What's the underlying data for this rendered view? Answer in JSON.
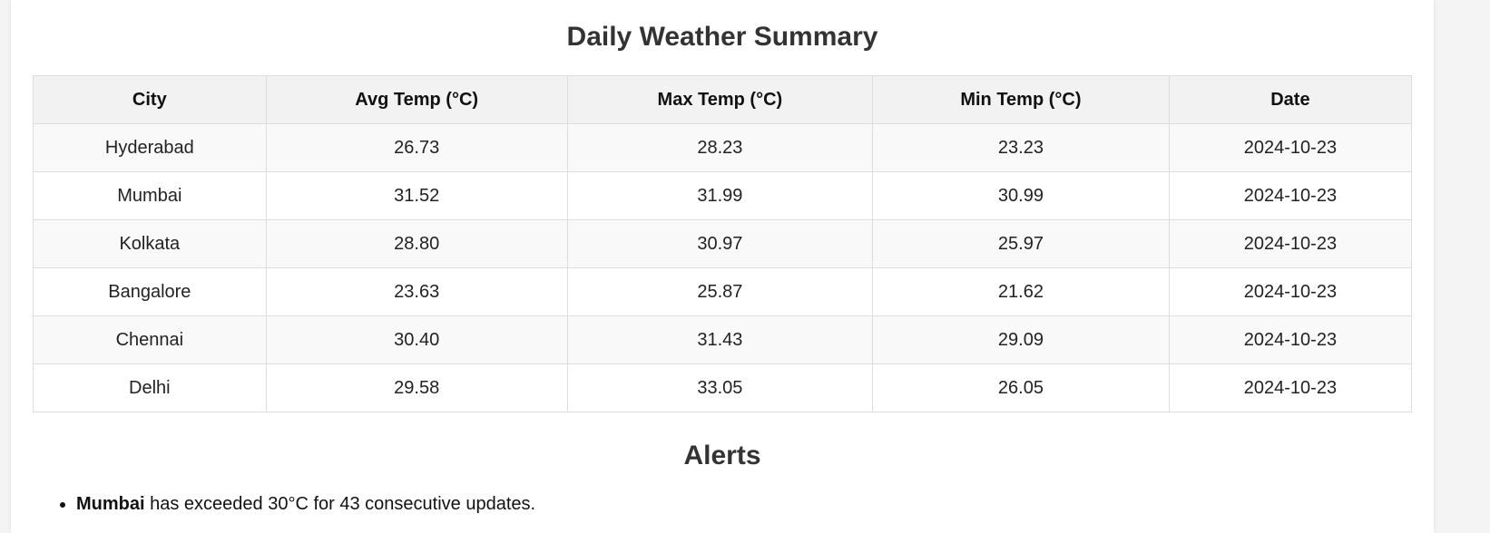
{
  "page_title": "Daily Weather Summary",
  "table": {
    "headers": [
      "City",
      "Avg Temp (°C)",
      "Max Temp (°C)",
      "Min Temp (°C)",
      "Date"
    ],
    "rows": [
      [
        "Hyderabad",
        "26.73",
        "28.23",
        "23.23",
        "2024-10-23"
      ],
      [
        "Mumbai",
        "31.52",
        "31.99",
        "30.99",
        "2024-10-23"
      ],
      [
        "Kolkata",
        "28.80",
        "30.97",
        "25.97",
        "2024-10-23"
      ],
      [
        "Bangalore",
        "23.63",
        "25.87",
        "21.62",
        "2024-10-23"
      ],
      [
        "Chennai",
        "30.40",
        "31.43",
        "29.09",
        "2024-10-23"
      ],
      [
        "Delhi",
        "29.58",
        "33.05",
        "26.05",
        "2024-10-23"
      ]
    ]
  },
  "alerts": {
    "title": "Alerts",
    "items": [
      {
        "city": "Mumbai",
        "message": " has exceeded 30°C for 43 consecutive updates."
      }
    ]
  }
}
